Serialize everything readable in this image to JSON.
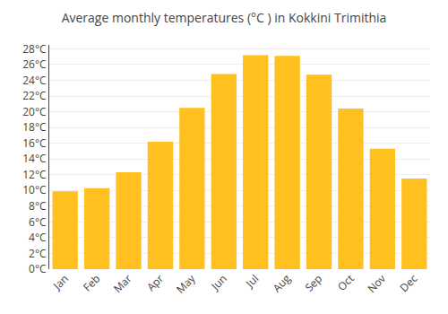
{
  "chart_data": {
    "type": "bar",
    "title": "Average monthly temperatures (°C ) in Kokkini Trimithia",
    "categories": [
      "Jan",
      "Feb",
      "Mar",
      "Apr",
      "May",
      "Jun",
      "Jul",
      "Aug",
      "Sep",
      "Oct",
      "Nov",
      "Dec"
    ],
    "values": [
      9.9,
      10.3,
      12.3,
      16.2,
      20.5,
      24.8,
      27.2,
      27.1,
      24.7,
      20.4,
      15.3,
      11.5
    ],
    "color": "#FFC020",
    "ylim": [
      0,
      28.5
    ],
    "yticks": [
      {
        "value": 0,
        "label": "0°C"
      },
      {
        "value": 2,
        "label": "2°C"
      },
      {
        "value": 4,
        "label": "4°C"
      },
      {
        "value": 6,
        "label": "6°C"
      },
      {
        "value": 8,
        "label": "8°C"
      },
      {
        "value": 10,
        "label": "10°C"
      },
      {
        "value": 12,
        "label": "12°C"
      },
      {
        "value": 14,
        "label": "14°C"
      },
      {
        "value": 16,
        "label": "16°C"
      },
      {
        "value": 18,
        "label": "18°C"
      },
      {
        "value": 20,
        "label": "20°C"
      },
      {
        "value": 22,
        "label": "22°C"
      },
      {
        "value": 24,
        "label": "24°C"
      },
      {
        "value": 26,
        "label": "26°C"
      },
      {
        "value": 28,
        "label": "28°C"
      }
    ],
    "grid": true
  }
}
